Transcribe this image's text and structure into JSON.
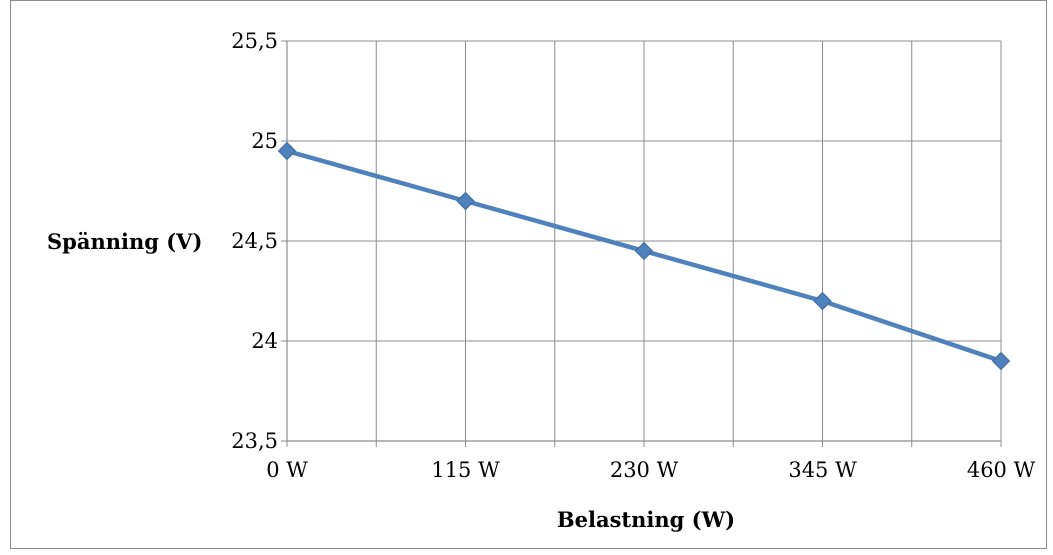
{
  "chart_data": {
    "type": "line",
    "title": "",
    "xlabel": "Belastning (W)",
    "ylabel": "Spänning (V)",
    "categories": [
      "0 W",
      "115 W",
      "230 W",
      "345 W",
      "460 W"
    ],
    "series": [
      {
        "values": [
          24.95,
          24.7,
          24.45,
          24.2,
          23.9
        ],
        "color": "#4F81BD",
        "marker": "diamond"
      }
    ],
    "ylim": [
      23.5,
      25.5
    ],
    "yticks": [
      23.5,
      24,
      24.5,
      25,
      25.5
    ],
    "ytick_labels": [
      "23,5",
      "24",
      "24,5",
      "25",
      "25,5"
    ],
    "grid": true,
    "legend": "none"
  }
}
